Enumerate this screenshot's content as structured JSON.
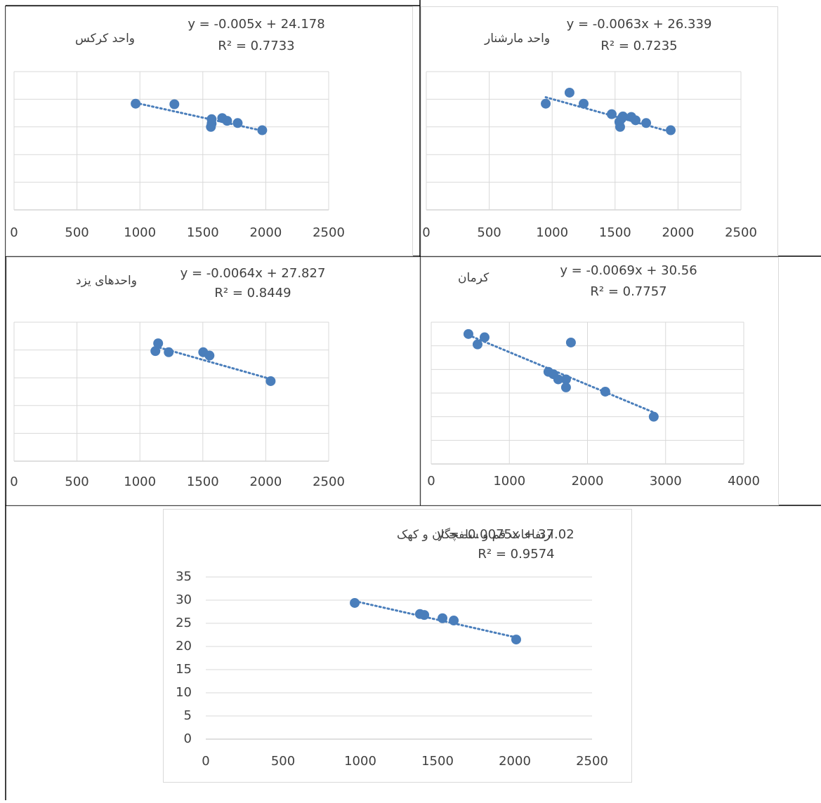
{
  "chart_data": [
    {
      "type": "scatter",
      "title": "واحد کرکس",
      "color": "#4a7ebb",
      "x": [
        966,
        1274,
        1570,
        1570,
        1564,
        1654,
        1693,
        1777,
        1972
      ],
      "values": [
        19.2,
        19.1,
        16.4,
        15.6,
        15.0,
        16.6,
        16.1,
        15.7,
        14.4
      ],
      "xlim": [
        0,
        2500
      ],
      "xticks": [
        0,
        500,
        1000,
        1500,
        2000,
        2500
      ],
      "ylim": [
        0,
        25
      ],
      "yticks": [
        0,
        5,
        10,
        15,
        20,
        25
      ],
      "show_ytick_labels": false,
      "vgrid": true,
      "trendline": {
        "equation": "y = -0.005x + 24.178",
        "r2": "R² = 0.7733",
        "slope": -0.005,
        "intercept": 24.178
      }
    },
    {
      "type": "scatter",
      "title": "واحد مارشنار",
      "color": "#4a7ebb",
      "x": [
        949,
        1138,
        1250,
        1473,
        1562,
        1629,
        1551,
        1663,
        1534,
        1540,
        1747,
        1942
      ],
      "values": [
        19.2,
        21.2,
        19.2,
        17.3,
        16.9,
        16.8,
        16.5,
        16.2,
        15.9,
        15.0,
        15.7,
        14.4
      ],
      "xlim": [
        0,
        2500
      ],
      "xticks": [
        0,
        500,
        1000,
        1500,
        2000,
        2500
      ],
      "ylim": [
        0,
        25
      ],
      "yticks": [
        0,
        5,
        10,
        15,
        20,
        25
      ],
      "show_ytick_labels": false,
      "vgrid": true,
      "trendline": {
        "equation": "y = -0.0063x + 26.339",
        "r2": "R² = 0.7235",
        "slope": -0.0063,
        "intercept": 26.339
      }
    },
    {
      "type": "scatter",
      "title": "واحدهای یزد",
      "color": "#4a7ebb",
      "x": [
        1123,
        1145,
        1229,
        1503,
        1553,
        2039
      ],
      "values": [
        19.8,
        21.2,
        19.6,
        19.6,
        19.0,
        14.4
      ],
      "xlim": [
        0,
        2500
      ],
      "xticks": [
        0,
        500,
        1000,
        1500,
        2000,
        2500
      ],
      "ylim": [
        0,
        25
      ],
      "yticks": [
        0,
        5,
        10,
        15,
        20,
        25
      ],
      "show_ytick_labels": false,
      "vgrid": true,
      "trendline": {
        "equation": "y = -0.0064x + 27.827",
        "r2": "R² = 0.8449",
        "slope": -0.0064,
        "intercept": 27.827
      }
    },
    {
      "type": "scatter",
      "title": "کرمان",
      "color": "#4a7ebb",
      "x": [
        476,
        593,
        683,
        1788,
        1500,
        1563,
        1626,
        1725,
        1725,
        2228,
        2848
      ],
      "values": [
        27.5,
        25.3,
        26.8,
        25.7,
        19.5,
        19.0,
        17.9,
        17.9,
        16.2,
        15.3,
        10.0
      ],
      "xlim": [
        0,
        4000
      ],
      "xticks": [
        0,
        1000,
        2000,
        3000,
        4000
      ],
      "ylim": [
        0,
        30
      ],
      "yticks": [
        0,
        5,
        10,
        15,
        20,
        25,
        30
      ],
      "show_ytick_labels": false,
      "vgrid": true,
      "trendline": {
        "equation": "y = -0.0069x + 30.56",
        "r2": "R² = 0.7757",
        "slope": -0.0069,
        "intercept": 30.56
      }
    },
    {
      "type": "scatter",
      "title": "ارتفاعات قم و سلفچگان و کهک",
      "color": "#4a7ebb",
      "x": [
        964,
        1386,
        1414,
        1532,
        1605,
        2009
      ],
      "values": [
        29.4,
        27.0,
        26.8,
        26.1,
        25.6,
        21.5
      ],
      "xlim": [
        0,
        2500
      ],
      "xticks": [
        0,
        500,
        1000,
        1500,
        2000,
        2500
      ],
      "ylim": [
        0,
        35
      ],
      "yticks": [
        0,
        5,
        10,
        15,
        20,
        25,
        30,
        35
      ],
      "show_ytick_labels": true,
      "vgrid": false,
      "trendline": {
        "equation": "y = -0.0075x + 37.02",
        "r2": "R² = 0.9574",
        "slope": -0.0075,
        "intercept": 37.02
      }
    }
  ]
}
